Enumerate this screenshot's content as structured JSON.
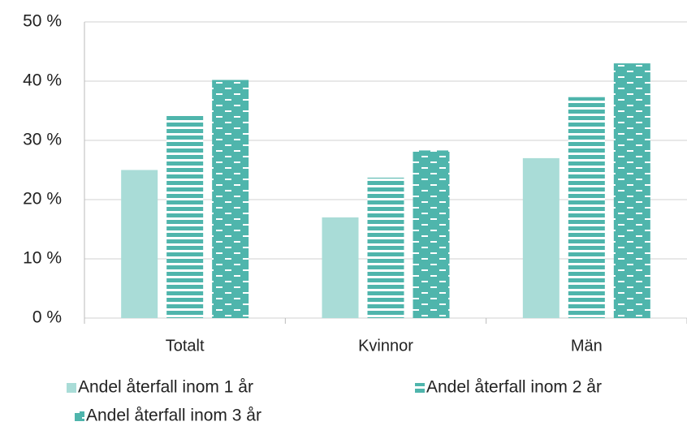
{
  "chart_data": {
    "type": "bar",
    "categories": [
      "Totalt",
      "Kvinnor",
      "Män"
    ],
    "series": [
      {
        "name": "Andel återfall inom 1 år",
        "color": "#a9dcd7",
        "pattern": "solid",
        "values": [
          25,
          17,
          27
        ]
      },
      {
        "name": "Andel återfall inom 2 år",
        "color": "#4fb5ac",
        "pattern": "stripes",
        "values": [
          34.5,
          23.7,
          37.3
        ]
      },
      {
        "name": "Andel återfall inom 3 år",
        "color": "#4fb5ac",
        "pattern": "dashes",
        "values": [
          40.2,
          28.3,
          43
        ]
      }
    ],
    "ylim": [
      0,
      50
    ],
    "yticks": [
      {
        "value": 0,
        "label": "0 %"
      },
      {
        "value": 10,
        "label": "10 %"
      },
      {
        "value": 20,
        "label": "20 %"
      },
      {
        "value": 30,
        "label": "30 %"
      },
      {
        "value": 40,
        "label": "40 %"
      },
      {
        "value": 50,
        "label": "50 %"
      }
    ],
    "grid": true,
    "legend": "bottom"
  }
}
